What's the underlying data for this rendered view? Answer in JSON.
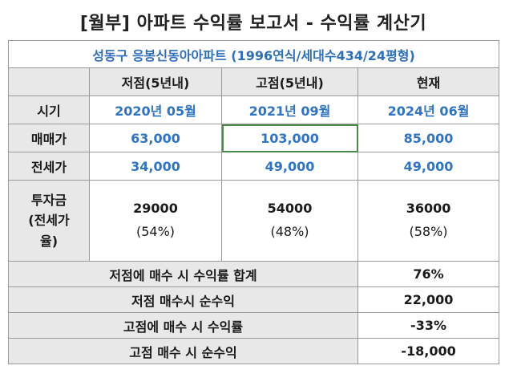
{
  "title": "[월부] 아파트 수익률 보고서 - 수익률 계산기",
  "subtitle": "성동구 응봉신동아아파트 (1996연식/세대수434/24평형)",
  "columns": [
    "",
    "저점(5년내)",
    "고점(5년내)",
    "현재"
  ],
  "rows": [
    {
      "label": "시기",
      "values": [
        "2020년 05월",
        "2021년 09월",
        "2024년 06월"
      ]
    },
    {
      "label": "매매가",
      "values": [
        "63,000",
        "103,000",
        "85,000"
      ]
    },
    {
      "label": "전세가",
      "values": [
        "34,000",
        "49,000",
        "49,000"
      ]
    }
  ],
  "investment": {
    "label_lines": [
      "투자금",
      "(전세가",
      "율)"
    ],
    "values": [
      {
        "amount": "29000",
        "ratio": "(54%)"
      },
      {
        "amount": "54000",
        "ratio": "(48%)"
      },
      {
        "amount": "36000",
        "ratio": "(58%)"
      }
    ]
  },
  "summary": [
    {
      "label": "저점에 매수 시 수익률 합계",
      "value": "76%"
    },
    {
      "label": "저점 매수시 순수익",
      "value": "22,000"
    },
    {
      "label": "고점에 매수 시 수익률",
      "value": "-33%"
    },
    {
      "label": "고점 매수 시 순수익",
      "value": "-18,000"
    }
  ]
}
